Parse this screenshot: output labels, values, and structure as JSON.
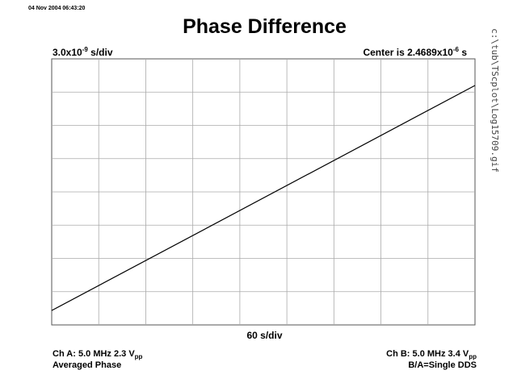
{
  "timestamp": "04 Nov 2004 06:43:20",
  "file_path": "c:\\tub\\TScplot\\Log15709.gif",
  "info": {
    "ch_a_base": "Ch A: 5.0 MHz 2.3 V",
    "ch_a_sub": "pp",
    "ch_a_line2": "Averaged Phase",
    "ch_b_base": "Ch B: 5.0 MHz 3.4 V",
    "ch_b_sub": "pp",
    "ch_b_line2": "B/A=Single DDS"
  },
  "chart_data": {
    "type": "line",
    "title": "Phase Difference",
    "y_scale_base": "3.0x10",
    "y_scale_exp": "-9",
    "y_scale_unit": " s/div",
    "center_base": "Center is 2.4689x10",
    "center_exp": "-6",
    "center_unit": " s",
    "x_scale": "60 s/div",
    "x_divisions": 9,
    "y_divisions": 8,
    "grid": true,
    "xlim": [
      0,
      540
    ],
    "ylim": [
      -12,
      12
    ],
    "series": [
      {
        "x": [
          0,
          540
        ],
        "y": [
          -10.7,
          9.6
        ]
      }
    ]
  }
}
